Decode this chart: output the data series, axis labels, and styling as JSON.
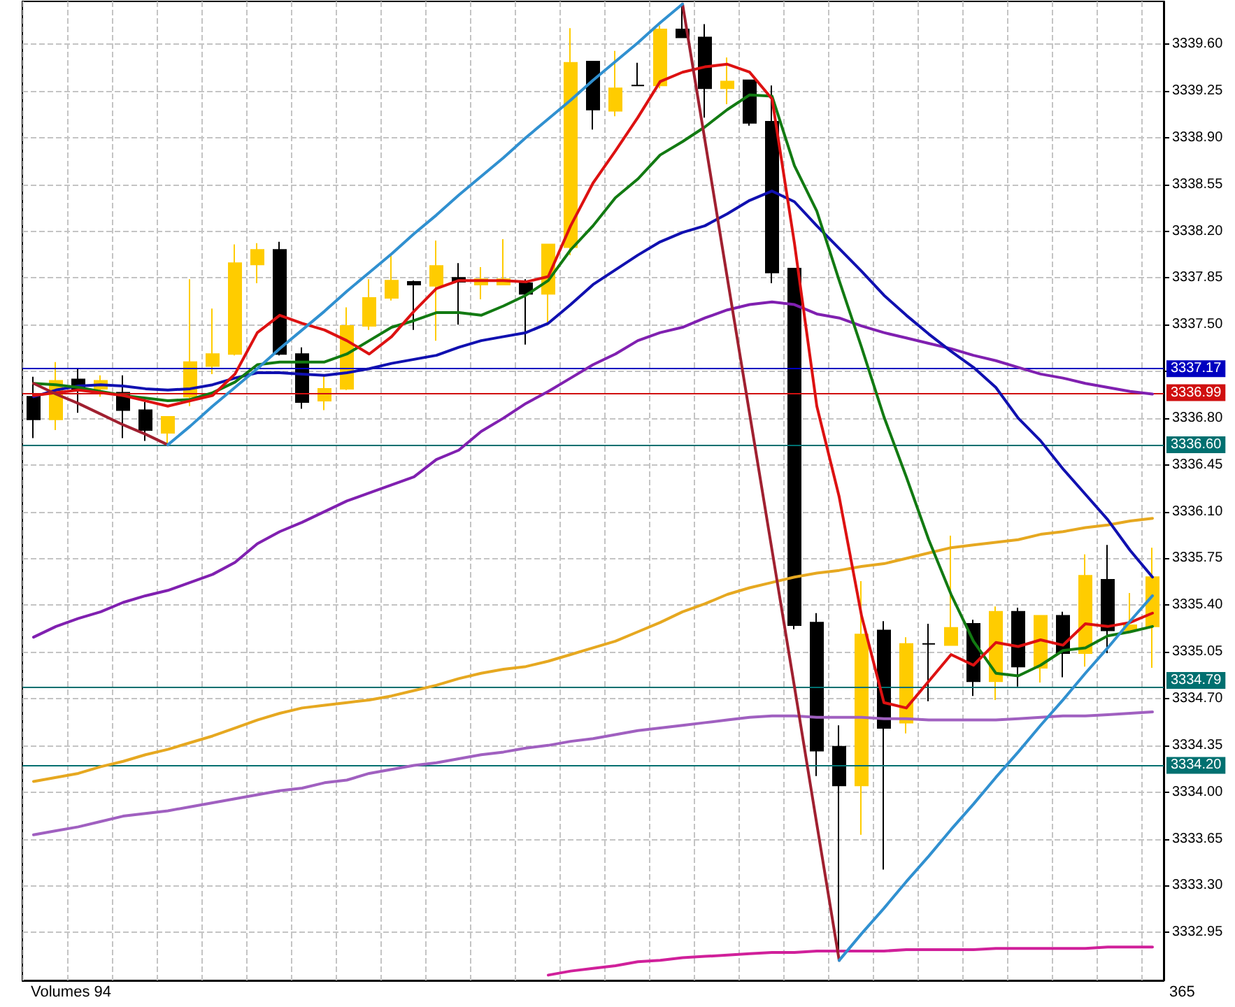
{
  "chart_data": {
    "type": "candlestick",
    "categories": [
      null,
      null,
      null,
      null,
      null,
      null,
      null,
      null,
      null,
      null,
      null,
      null,
      null,
      null,
      null,
      null,
      null,
      null,
      null,
      null,
      null,
      null,
      null,
      null,
      null,
      null,
      null,
      null,
      null,
      null,
      null,
      null,
      null,
      null,
      null,
      null,
      null,
      null,
      null,
      null,
      null,
      null,
      null,
      null,
      null,
      null,
      null,
      null,
      null,
      null,
      null
    ],
    "ohlc": [
      [
        3336.96,
        3337.11,
        3336.65,
        3336.79
      ],
      [
        3336.79,
        3337.22,
        3336.71,
        3337.08
      ],
      [
        3337.09,
        3337.17,
        3336.84,
        3337.02
      ],
      [
        3337.02,
        3337.12,
        3336.96,
        3337.08
      ],
      [
        3336.99,
        3337.12,
        3336.65,
        3336.86
      ],
      [
        3336.86,
        3336.92,
        3336.63,
        3336.71
      ],
      [
        3336.69,
        3336.81,
        3336.6,
        3336.81
      ],
      [
        3336.96,
        3337.84,
        3336.89,
        3337.22
      ],
      [
        3337.19,
        3337.62,
        3337.13,
        3337.28
      ],
      [
        3337.28,
        3338.1,
        3337.27,
        3337.96
      ],
      [
        3337.95,
        3338.11,
        3337.81,
        3338.06
      ],
      [
        3338.06,
        3338.12,
        3337.27,
        3337.28
      ],
      [
        3337.28,
        3337.33,
        3336.87,
        3336.92
      ],
      [
        3336.93,
        3337.13,
        3336.86,
        3337.02
      ],
      [
        3337.02,
        3337.63,
        3337.01,
        3337.49
      ],
      [
        3337.49,
        3337.84,
        3337.46,
        3337.7
      ],
      [
        3337.7,
        3338.03,
        3337.68,
        3337.83
      ],
      [
        3337.82,
        3337.83,
        3337.46,
        3337.8
      ],
      [
        3337.79,
        3338.13,
        3337.38,
        3337.94
      ],
      [
        3337.85,
        3337.96,
        3337.5,
        3337.82
      ],
      [
        3337.8,
        3337.93,
        3337.69,
        3337.84
      ],
      [
        3337.8,
        3338.14,
        3337.8,
        3337.84
      ],
      [
        3337.81,
        3337.84,
        3337.35,
        3337.73
      ],
      [
        3337.73,
        3338.1,
        3337.51,
        3338.1
      ],
      [
        3338.08,
        3339.72,
        3338.02,
        3339.46
      ],
      [
        3339.47,
        3339.47,
        3338.96,
        3339.11
      ],
      [
        3339.1,
        3339.55,
        3339.06,
        3339.27
      ],
      [
        3339.29,
        3339.46,
        3339.29,
        3339.29
      ],
      [
        3339.29,
        3339.74,
        3339.27,
        3339.71
      ],
      [
        3339.71,
        3339.9,
        3339.65,
        3339.65
      ],
      [
        3339.65,
        3339.75,
        3339.05,
        3339.27
      ],
      [
        3339.27,
        3339.5,
        3339.15,
        3339.32
      ],
      [
        3339.33,
        3339.33,
        3338.99,
        3339.01
      ],
      [
        3339.02,
        3339.29,
        3337.81,
        3337.89
      ],
      [
        3337.92,
        3337.92,
        3335.22,
        3335.25
      ],
      [
        3335.27,
        3335.34,
        3334.12,
        3334.31
      ],
      [
        3334.34,
        3334.5,
        3332.74,
        3334.05
      ],
      [
        3334.05,
        3335.58,
        3333.68,
        3335.18
      ],
      [
        3335.21,
        3335.28,
        3333.42,
        3334.48
      ],
      [
        3334.52,
        3335.16,
        3334.44,
        3335.11
      ],
      [
        3335.11,
        3335.26,
        3334.68,
        3335.11
      ],
      [
        3335.1,
        3335.92,
        3335.1,
        3335.23
      ],
      [
        3335.26,
        3335.29,
        3334.72,
        3334.83
      ],
      [
        3334.83,
        3335.39,
        3334.69,
        3335.35
      ],
      [
        3335.35,
        3335.38,
        3334.79,
        3334.94
      ],
      [
        3334.93,
        3335.32,
        3334.82,
        3335.32
      ],
      [
        3335.32,
        3335.35,
        3334.86,
        3335.04
      ],
      [
        3335.04,
        3335.78,
        3334.94,
        3335.62
      ],
      [
        3335.59,
        3335.85,
        3335.04,
        3335.21
      ],
      [
        3335.21,
        3335.49,
        3335.2,
        3335.25
      ],
      [
        3335.24,
        3335.83,
        3334.93,
        3335.61
      ]
    ],
    "colors": [
      "#000000",
      "#ffcc00",
      "#000000",
      "#ffcc00",
      "#000000",
      "#000000",
      "#ffcc00",
      "#ffcc00",
      "#ffcc00",
      "#ffcc00",
      "#ffcc00",
      "#000000",
      "#000000",
      "#ffcc00",
      "#ffcc00",
      "#ffcc00",
      "#ffcc00",
      "#000000",
      "#ffcc00",
      "#000000",
      "#ffcc00",
      "#ffcc00",
      "#000000",
      "#ffcc00",
      "#ffcc00",
      "#000000",
      "#ffcc00",
      "#000000",
      "#ffcc00",
      "#000000",
      "#000000",
      "#ffcc00",
      "#000000",
      "#000000",
      "#000000",
      "#000000",
      "#000000",
      "#ffcc00",
      "#000000",
      "#ffcc00",
      "#000000",
      "#ffcc00",
      "#000000",
      "#ffcc00",
      "#000000",
      "#ffcc00",
      "#000000",
      "#ffcc00",
      "#000000",
      "#ffcc00",
      "#ffcc00"
    ],
    "series": [
      {
        "type": "line",
        "color": "#e6a820",
        "values": [
          3334.08,
          3334.11,
          3334.14,
          3334.19,
          3334.23,
          3334.28,
          3334.32,
          3334.37,
          3334.42,
          3334.48,
          3334.54,
          3334.59,
          3334.63,
          3334.65,
          3334.67,
          3334.69,
          3334.72,
          3334.76,
          3334.8,
          3334.85,
          3334.89,
          3334.92,
          3334.94,
          3334.98,
          3335.03,
          3335.08,
          3335.13,
          3335.2,
          3335.27,
          3335.35,
          3335.41,
          3335.48,
          3335.53,
          3335.57,
          3335.61,
          3335.64,
          3335.66,
          3335.69,
          3335.71,
          3335.75,
          3335.79,
          3335.83,
          3335.85,
          3335.87,
          3335.89,
          3335.93,
          3335.95,
          3335.98,
          3336.0,
          3336.03,
          3336.05
        ]
      },
      {
        "type": "line",
        "color": "#a060c0",
        "values": [
          3333.68,
          3333.71,
          3333.74,
          3333.78,
          3333.82,
          3333.84,
          3333.86,
          3333.89,
          3333.92,
          3333.95,
          3333.98,
          3334.01,
          3334.03,
          3334.07,
          3334.09,
          3334.14,
          3334.17,
          3334.2,
          3334.22,
          3334.25,
          3334.28,
          3334.3,
          3334.33,
          3334.35,
          3334.38,
          3334.4,
          3334.43,
          3334.46,
          3334.48,
          3334.5,
          3334.52,
          3334.54,
          3334.56,
          3334.57,
          3334.57,
          3334.56,
          3334.56,
          3334.56,
          3334.55,
          3334.55,
          3334.54,
          3334.54,
          3334.54,
          3334.54,
          3334.55,
          3334.56,
          3334.57,
          3334.57,
          3334.58,
          3334.59,
          3334.6
        ]
      },
      {
        "type": "line",
        "color": "#d0209a",
        "values": [
          null,
          null,
          null,
          null,
          null,
          null,
          null,
          null,
          null,
          null,
          null,
          null,
          null,
          null,
          null,
          null,
          null,
          null,
          null,
          null,
          null,
          null,
          null,
          3332.63,
          3332.66,
          3332.68,
          3332.7,
          3332.73,
          3332.74,
          3332.76,
          3332.77,
          3332.78,
          3332.79,
          3332.8,
          3332.8,
          3332.81,
          3332.81,
          3332.81,
          3332.81,
          3332.82,
          3332.82,
          3332.82,
          3332.82,
          3332.83,
          3332.83,
          3332.83,
          3332.83,
          3332.83,
          3332.84,
          3332.84,
          3332.84
        ]
      },
      {
        "type": "line",
        "color": "#8020b0",
        "values": [
          3335.16,
          3335.24,
          3335.3,
          3335.35,
          3335.42,
          3335.47,
          3335.51,
          3335.57,
          3335.63,
          3335.72,
          3335.86,
          3335.95,
          3336.02,
          3336.1,
          3336.18,
          3336.24,
          3336.3,
          3336.36,
          3336.49,
          3336.56,
          3336.7,
          3336.8,
          3336.91,
          3337.0,
          3337.1,
          3337.2,
          3337.28,
          3337.38,
          3337.44,
          3337.48,
          3337.55,
          3337.61,
          3337.65,
          3337.67,
          3337.65,
          3337.58,
          3337.55,
          3337.49,
          3337.44,
          3337.4,
          3337.36,
          3337.32,
          3337.27,
          3337.23,
          3337.18,
          3337.13,
          3337.1,
          3337.06,
          3337.03,
          3337.0,
          3336.98
        ]
      },
      {
        "type": "line",
        "color": "#1010b0",
        "values": [
          3336.96,
          3337.01,
          3337.04,
          3337.05,
          3337.04,
          3337.02,
          3337.01,
          3337.02,
          3337.05,
          3337.1,
          3337.14,
          3337.14,
          3337.13,
          3337.12,
          3337.14,
          3337.17,
          3337.21,
          3337.24,
          3337.27,
          3337.33,
          3337.38,
          3337.41,
          3337.44,
          3337.51,
          3337.65,
          3337.8,
          3337.91,
          3338.02,
          3338.12,
          3338.19,
          3338.24,
          3338.33,
          3338.43,
          3338.5,
          3338.42,
          3338.24,
          3338.07,
          3337.9,
          3337.72,
          3337.57,
          3337.43,
          3337.3,
          3337.18,
          3337.03,
          3336.8,
          3336.63,
          3336.42,
          3336.23,
          3336.04,
          3335.81,
          3335.61
        ]
      },
      {
        "type": "line",
        "color": "#127a12",
        "values": [
          3337.06,
          3337.05,
          3337.03,
          3337.0,
          3336.97,
          3336.95,
          3336.93,
          3336.94,
          3336.99,
          3337.07,
          3337.2,
          3337.22,
          3337.22,
          3337.22,
          3337.28,
          3337.38,
          3337.48,
          3337.53,
          3337.59,
          3337.59,
          3337.57,
          3337.64,
          3337.72,
          3337.83,
          3338.06,
          3338.24,
          3338.45,
          3338.59,
          3338.77,
          3338.87,
          3338.98,
          3339.11,
          3339.22,
          3339.21,
          3338.69,
          3338.35,
          3337.83,
          3337.33,
          3336.81,
          3336.36,
          3335.89,
          3335.48,
          3335.13,
          3334.89,
          3334.87,
          3334.95,
          3335.06,
          3335.08,
          3335.17,
          3335.2,
          3335.24
        ]
      },
      {
        "type": "line",
        "color": "#dd1111",
        "values": [
          3336.97,
          3336.99,
          3337.01,
          3336.99,
          3336.97,
          3336.93,
          3336.89,
          3336.93,
          3336.97,
          3337.13,
          3337.44,
          3337.57,
          3337.51,
          3337.46,
          3337.38,
          3337.28,
          3337.41,
          3337.6,
          3337.77,
          3337.83,
          3337.83,
          3337.83,
          3337.82,
          3337.86,
          3338.24,
          3338.56,
          3338.8,
          3339.05,
          3339.32,
          3339.39,
          3339.43,
          3339.45,
          3339.39,
          3339.19,
          3338.11,
          3336.89,
          3336.21,
          3335.32,
          3334.67,
          3334.63,
          3334.83,
          3335.03,
          3334.95,
          3335.12,
          3335.09,
          3335.14,
          3335.1,
          3335.26,
          3335.24,
          3335.27,
          3335.34
        ]
      },
      {
        "type": "line",
        "color": "#a02030",
        "values": [
          3337.06,
          3336.98,
          3336.91,
          3336.83,
          3336.75,
          3336.68,
          3336.6,
          null,
          null,
          null,
          null,
          null,
          null,
          null,
          null,
          null,
          null,
          null,
          null,
          null,
          null,
          null,
          null,
          null,
          null,
          null,
          null,
          null,
          null,
          3339.9,
          3338.88,
          3337.85,
          3336.83,
          3335.81,
          3334.79,
          3333.76,
          3332.74,
          null,
          null,
          null,
          null,
          null,
          null,
          null,
          null,
          null,
          null,
          null,
          null,
          null,
          null
        ]
      },
      {
        "type": "line",
        "color": "#3090d0",
        "values": [
          null,
          null,
          null,
          null,
          null,
          null,
          3336.6,
          3336.74,
          3336.89,
          3337.03,
          3337.17,
          3337.32,
          3337.46,
          3337.6,
          3337.75,
          3337.89,
          3338.03,
          3338.18,
          3338.32,
          3338.47,
          3338.61,
          3338.75,
          3338.9,
          3339.04,
          3339.18,
          3339.33,
          3339.47,
          3339.61,
          3339.76,
          3339.9,
          null,
          null,
          null,
          null,
          null,
          null,
          3332.74,
          3332.94,
          3333.13,
          3333.33,
          3333.52,
          3333.72,
          3333.91,
          3334.11,
          3334.3,
          3334.5,
          3334.69,
          3334.89,
          3335.08,
          3335.28,
          3335.47
        ]
      }
    ],
    "ylim": [
      3332.59,
      3339.92
    ],
    "yticks": [
      3332.95,
      {
        "value": 3333.3,
        "label": "3333.30"
      },
      3333.65,
      {
        "value": 3334,
        "label": "3334.00"
      },
      3334.35,
      {
        "value": 3334.7,
        "label": "3334.70"
      },
      3335.05,
      {
        "value": 3335.4,
        "label": "3335.40"
      },
      3335.75,
      {
        "value": 3336.1,
        "label": "3336.10"
      },
      3336.45,
      {
        "value": 3336.8,
        "label": "3336.80"
      },
      {
        "value": 3337.15,
        "label": null
      },
      {
        "value": 3337.5,
        "label": "3337.50"
      },
      3337.85,
      {
        "value": 3338.2,
        "label": "3338.20"
      },
      3338.55,
      {
        "value": 3338.9,
        "label": "3338.90"
      },
      3339.25,
      {
        "value": 3339.6,
        "label": "3339.60"
      }
    ],
    "ref_lines": [
      {
        "axis": "y",
        "value": 3337.17,
        "label": "3337.17",
        "color": "#0000c0"
      },
      {
        "axis": "y",
        "value": 3336.99,
        "label": "3336.99",
        "color": "#d01010"
      },
      {
        "axis": "y",
        "value": 3336.6,
        "label": "3336.60",
        "color": "#007070"
      },
      {
        "axis": "y",
        "value": 3334.79,
        "label": "3334.79",
        "color": "#007070"
      },
      {
        "axis": "y",
        "value": 3334.2,
        "label": "3334.20",
        "color": "#007070"
      }
    ],
    "annotations": [
      "Volumes 94",
      "365"
    ],
    "grid": true,
    "marker": "none",
    "tick_labels": "y"
  }
}
